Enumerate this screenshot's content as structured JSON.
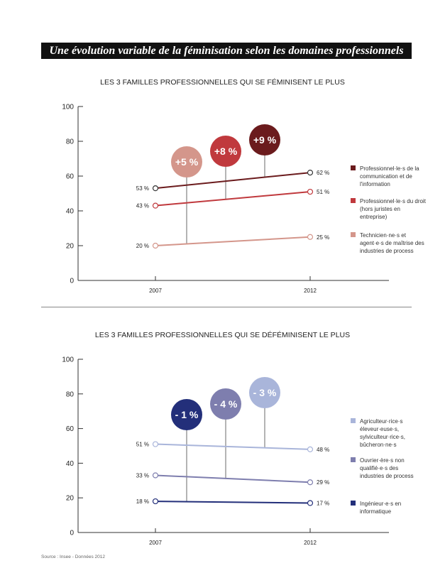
{
  "title": "Une évolution variable de la féminisation selon les domaines professionnels",
  "source": "Source : Insee - Données 2012",
  "chart_data": [
    {
      "type": "line",
      "title": "LES 3 FAMILLES PROFESSIONNELLES QUI SE FÉMINISENT LE PLUS",
      "categories": [
        "2007",
        "2012"
      ],
      "ylim": [
        0,
        100
      ],
      "yticks": [
        0,
        20,
        40,
        60,
        80,
        100
      ],
      "legend": "right",
      "series": [
        {
          "name": "Professionnel·le·s de la communication et de l'information",
          "values": [
            53,
            62
          ],
          "labels": [
            "53 %",
            "62 %"
          ],
          "change": "+9 %",
          "color": "#6b1b1d"
        },
        {
          "name": "Professionnel·le·s du droit (hors juristes en entreprise)",
          "values": [
            43,
            51
          ],
          "labels": [
            "43 %",
            "51 %"
          ],
          "change": "+8 %",
          "color": "#c0393d"
        },
        {
          "name": "Technicien·ne·s et agent·e·s de maîtrise des industries de process",
          "values": [
            20,
            25
          ],
          "labels": [
            "20 %",
            "25 %"
          ],
          "change": "+5 %",
          "color": "#d4968b"
        }
      ],
      "bubble_order": [
        2,
        1,
        0
      ]
    },
    {
      "type": "line",
      "title": "LES 3 FAMILLES PROFESSIONNELLES QUI SE DÉFÉMINISENT LE PLUS",
      "categories": [
        "2007",
        "2012"
      ],
      "ylim": [
        0,
        100
      ],
      "yticks": [
        0,
        20,
        40,
        60,
        80,
        100
      ],
      "legend": "right",
      "series": [
        {
          "name": "Agriculteur·rice·s éleveur·euse·s, sylviculteur·rice·s, bûcheron·ne·s",
          "values": [
            51,
            48
          ],
          "labels": [
            "51 %",
            "48 %"
          ],
          "change": "- 3 %",
          "color": "#a9b5da"
        },
        {
          "name": "Ouvrier·ère·s non qualifié·e·s des industries de process",
          "values": [
            33,
            29
          ],
          "labels": [
            "33 %",
            "29 %"
          ],
          "change": "- 4 %",
          "color": "#7e7eae"
        },
        {
          "name": "Ingénieur·e·s en informatique",
          "values": [
            18,
            17
          ],
          "labels": [
            "18 %",
            "17 %"
          ],
          "change": "- 1 %",
          "color": "#232f7a"
        }
      ],
      "bubble_order": [
        2,
        1,
        0
      ]
    }
  ]
}
